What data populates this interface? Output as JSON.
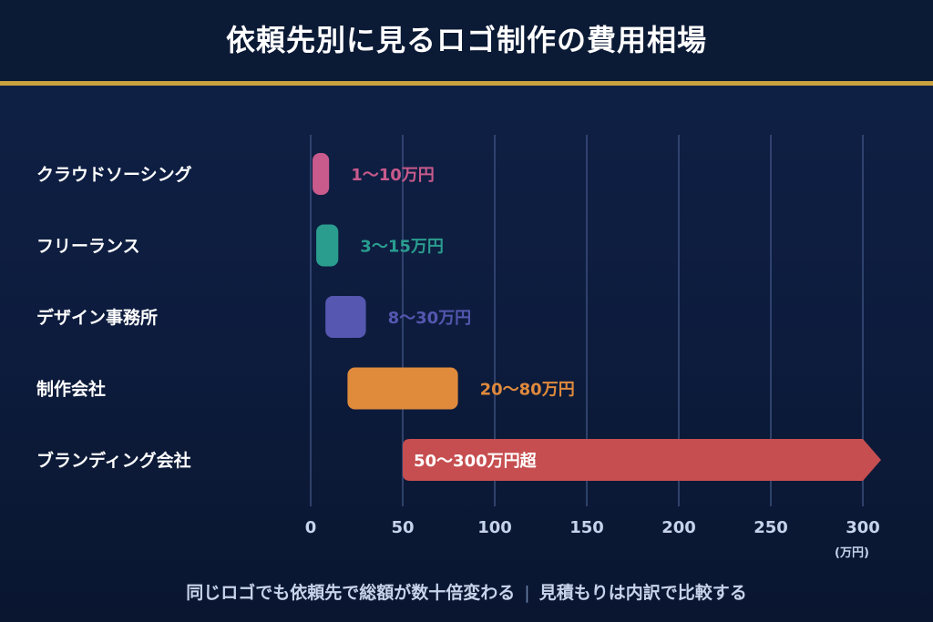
{
  "title": "依頼先別に見るロゴ制作の費用相場",
  "footer": {
    "left": "同じロゴでも依頼先で総額が数十倍変わる",
    "separator": "|",
    "right": "見積もりは内訳で比較する"
  },
  "chart_data": {
    "type": "bar",
    "orientation": "horizontal",
    "subtype": "range",
    "unit_label": "(万円)",
    "xlim": [
      0,
      300
    ],
    "xticks": [
      "0",
      "50",
      "100",
      "150",
      "200",
      "250",
      "300"
    ],
    "grid": true,
    "categories": [
      "クラウドソーシング",
      "フリーランス",
      "デザイン事務所",
      "制作会社",
      "ブランディング会社"
    ],
    "ranges": [
      {
        "min": 1,
        "max": 10,
        "label": "1〜10万円",
        "color": "#c85a8c"
      },
      {
        "min": 3,
        "max": 15,
        "label": "3〜15万円",
        "color": "#2a9d8f"
      },
      {
        "min": 8,
        "max": 30,
        "label": "8〜30万円",
        "color": "#5557b0"
      },
      {
        "min": 20,
        "max": 80,
        "label": "20〜80万円",
        "color": "#e08a3c"
      },
      {
        "min": 50,
        "max": 300,
        "label": "50〜300万円超",
        "color": "#c64e50",
        "open_ended": true
      }
    ]
  }
}
